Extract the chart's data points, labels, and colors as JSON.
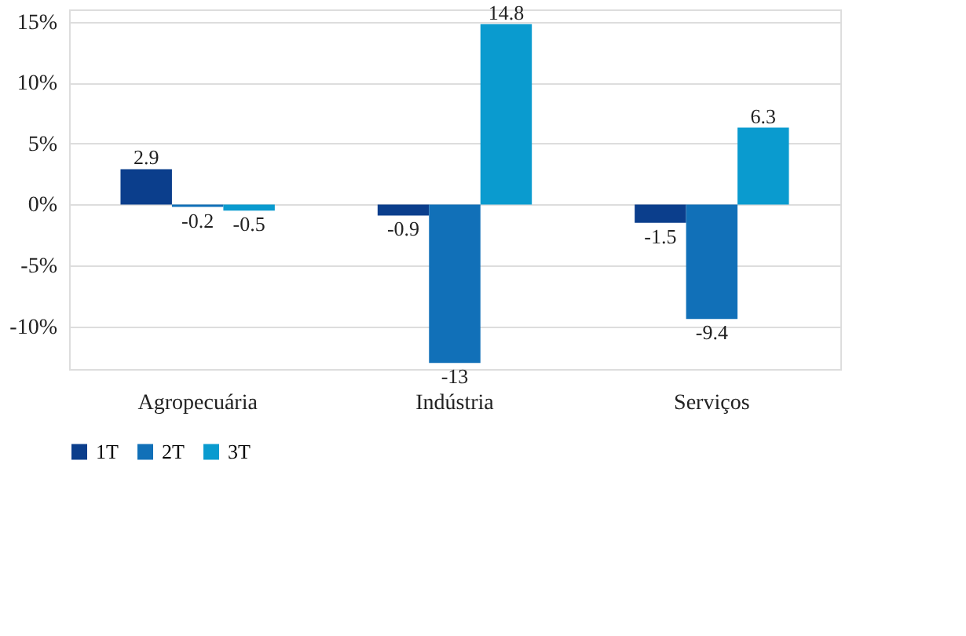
{
  "chart_data": {
    "type": "bar",
    "categories": [
      "Agropecuária",
      "Indústria",
      "Serviços"
    ],
    "series": [
      {
        "name": "1T",
        "color": "#0b3e8c",
        "values": [
          2.9,
          -0.9,
          -1.5
        ]
      },
      {
        "name": "2T",
        "color": "#1170b8",
        "values": [
          -0.2,
          -13,
          -9.4
        ]
      },
      {
        "name": "3T",
        "color": "#0a9bcf",
        "values": [
          -0.5,
          14.8,
          6.3
        ]
      }
    ],
    "ylim": [
      -13.5,
      16
    ],
    "yticks": [
      {
        "value": -10,
        "label": "-10%"
      },
      {
        "value": -5,
        "label": "-5%"
      },
      {
        "value": 0,
        "label": "0%"
      },
      {
        "value": 5,
        "label": "5%"
      },
      {
        "value": 10,
        "label": "10%"
      },
      {
        "value": 15,
        "label": "15%"
      }
    ],
    "grid": "y",
    "legend": "bottom",
    "data_labels": true
  }
}
